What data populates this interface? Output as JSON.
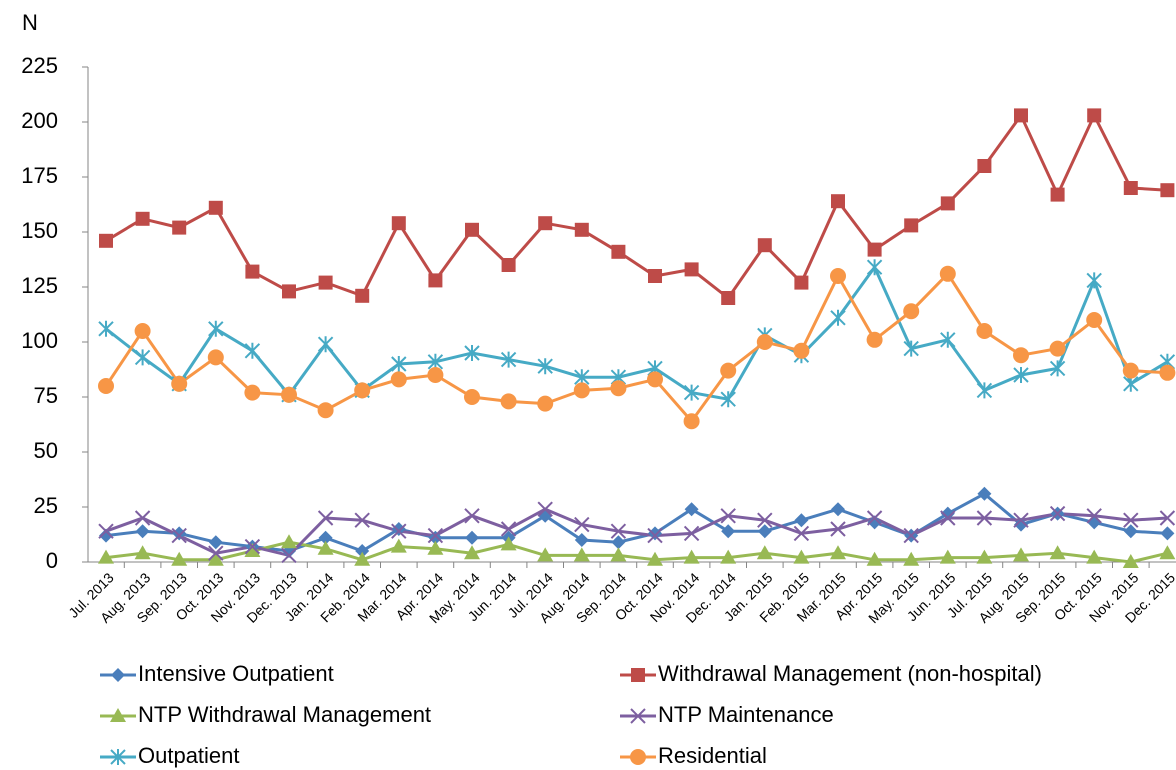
{
  "chart_data": {
    "type": "line",
    "ylabel": "N",
    "categories": [
      "Jul. 2013",
      "Aug. 2013",
      "Sep. 2013",
      "Oct. 2013",
      "Nov. 2013",
      "Dec. 2013",
      "Jan. 2014",
      "Feb. 2014",
      "Mar. 2014",
      "Apr. 2014",
      "May. 2014",
      "Jun. 2014",
      "Jul. 2014",
      "Aug. 2014",
      "Sep. 2014",
      "Oct. 2014",
      "Nov. 2014",
      "Dec. 2014",
      "Jan. 2015",
      "Feb. 2015",
      "Mar. 2015",
      "Apr. 2015",
      "May. 2015",
      "Jun. 2015",
      "Jul. 2015",
      "Aug. 2015",
      "Sep. 2015",
      "Oct. 2015",
      "Nov. 2015",
      "Dec. 2015"
    ],
    "series": [
      {
        "name": "Intensive Outpatient",
        "color": "#4a7ebb",
        "marker": "diamond",
        "values": [
          12,
          14,
          13,
          9,
          7,
          5,
          11,
          5,
          15,
          11,
          11,
          11,
          21,
          10,
          9,
          13,
          24,
          14,
          14,
          19,
          24,
          18,
          12,
          22,
          31,
          17,
          22,
          18,
          14,
          13
        ]
      },
      {
        "name": "Withdrawal Management (non-hospital)",
        "color": "#be4b48",
        "marker": "square",
        "values": [
          146,
          156,
          152,
          161,
          132,
          123,
          127,
          121,
          154,
          128,
          151,
          135,
          154,
          151,
          141,
          130,
          133,
          120,
          144,
          127,
          164,
          142,
          153,
          163,
          180,
          203,
          167,
          203,
          170,
          169
        ]
      },
      {
        "name": "NTP Withdrawal Management",
        "color": "#98b954",
        "marker": "triangle",
        "values": [
          2,
          4,
          1,
          1,
          5,
          9,
          6,
          1,
          7,
          6,
          4,
          8,
          3,
          3,
          3,
          1,
          2,
          2,
          4,
          2,
          4,
          1,
          1,
          2,
          2,
          3,
          4,
          2,
          0,
          4
        ]
      },
      {
        "name": "NTP Maintenance",
        "color": "#7d5fa0",
        "marker": "x",
        "values": [
          14,
          20,
          12,
          4,
          7,
          3,
          20,
          19,
          14,
          12,
          21,
          15,
          24,
          17,
          14,
          12,
          13,
          21,
          19,
          13,
          15,
          20,
          12,
          20,
          20,
          19,
          22,
          21,
          19,
          20
        ]
      },
      {
        "name": "Outpatient",
        "color": "#46aac5",
        "marker": "star",
        "values": [
          106,
          93,
          81,
          106,
          96,
          76,
          99,
          78,
          90,
          91,
          95,
          92,
          89,
          84,
          84,
          88,
          77,
          74,
          103,
          94,
          111,
          134,
          97,
          101,
          78,
          85,
          88,
          128,
          81,
          91
        ]
      },
      {
        "name": "Residential",
        "color": "#f79646",
        "marker": "circle",
        "values": [
          80,
          105,
          81,
          93,
          77,
          76,
          69,
          78,
          83,
          85,
          75,
          73,
          72,
          78,
          79,
          83,
          64,
          87,
          100,
          96,
          130,
          101,
          114,
          131,
          105,
          94,
          97,
          110,
          87,
          86
        ]
      }
    ],
    "ylim": [
      0,
      225
    ],
    "yticks": [
      0,
      25,
      50,
      75,
      100,
      125,
      150,
      175,
      200,
      225
    ],
    "grid": false
  }
}
